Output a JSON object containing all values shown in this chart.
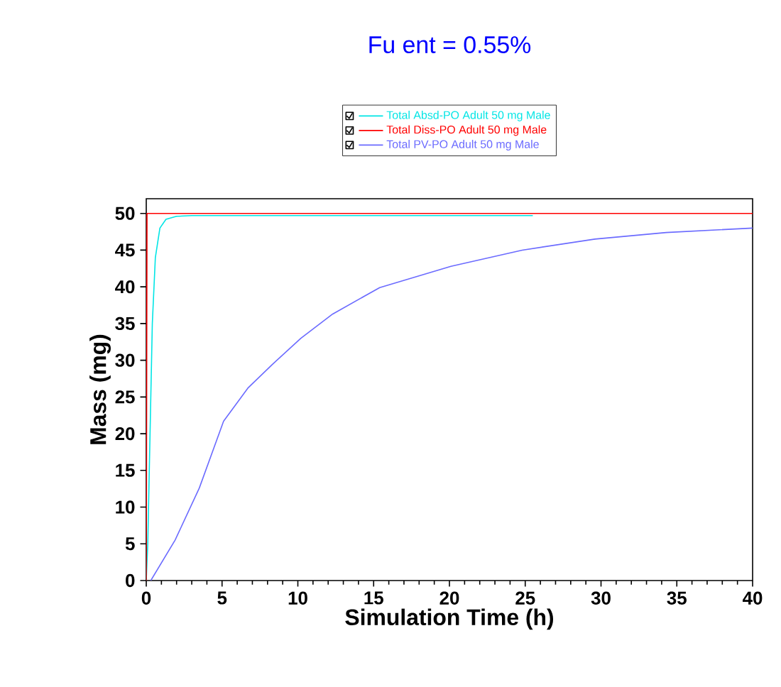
{
  "chart_data": {
    "type": "line",
    "title": "Fu ent = 0.55%",
    "xlabel": "Simulation Time (h)",
    "ylabel": "Mass (mg)",
    "xlim": [
      0,
      40
    ],
    "xticks": [
      0,
      5,
      10,
      15,
      20,
      25,
      30,
      35,
      40
    ],
    "ylim": [
      0,
      52
    ],
    "yticks": [
      0,
      5,
      10,
      15,
      20,
      25,
      30,
      35,
      40,
      45,
      50
    ],
    "grid": false,
    "legend": "top",
    "marker": "none",
    "line_style": "solid",
    "series": [
      {
        "name": "Total Absd-PO Adult 50 mg Male",
        "color": "#00e5e5",
        "x": [
          0,
          0.1,
          0.25,
          0.4,
          0.6,
          0.9,
          1.3,
          2,
          3,
          25.5
        ],
        "values": [
          0,
          5,
          20,
          35,
          44,
          48,
          49.2,
          49.6,
          49.7,
          49.7
        ]
      },
      {
        "name": "Total Diss-PO Adult 50 mg Male",
        "color": "#ff0000",
        "x": [
          0,
          0.05,
          40
        ],
        "values": [
          0,
          50,
          50
        ]
      },
      {
        "name": "Total PV-PO Adult 50 mg Male",
        "color": "#6b6bff",
        "x": [
          0.3,
          1.9,
          3.5,
          5.1,
          6.7,
          8.3,
          10.2,
          12.3,
          15.4,
          20.1,
          24.8,
          29.6,
          34.3,
          40
        ],
        "values": [
          0,
          5.5,
          12.6,
          21.7,
          26.2,
          29.4,
          33,
          36.3,
          39.9,
          42.8,
          45,
          46.5,
          47.4,
          48
        ]
      }
    ]
  }
}
